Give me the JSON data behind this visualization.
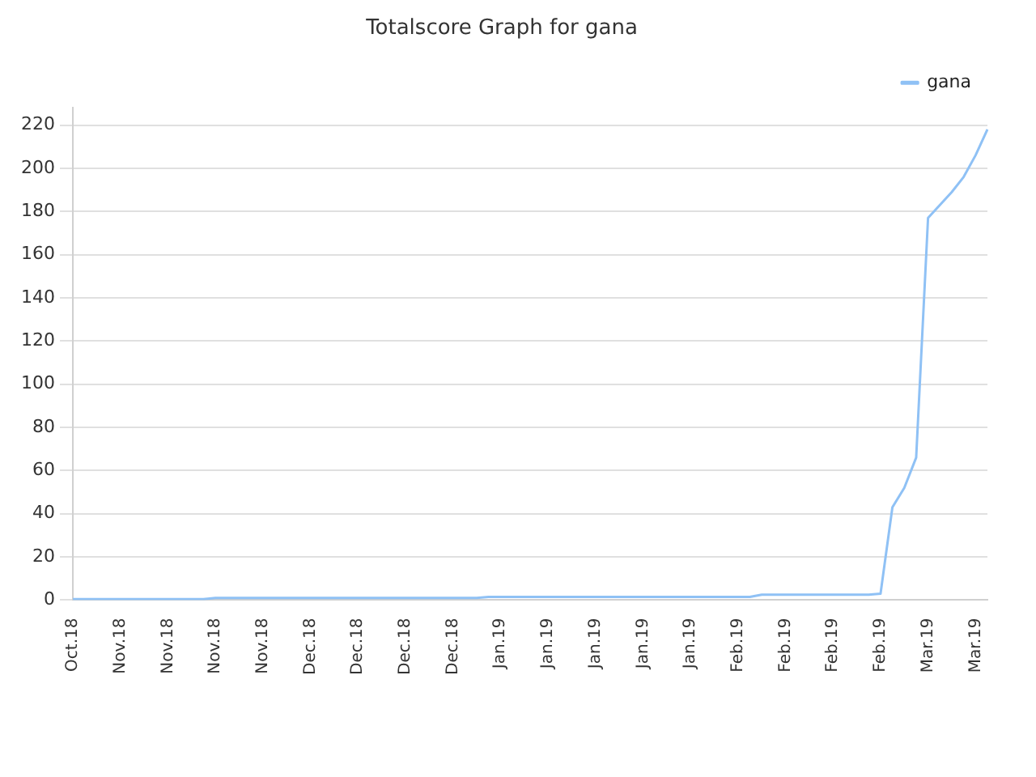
{
  "chart_data": {
    "type": "line",
    "title": "Totalscore Graph for gana",
    "categories": [
      "Oct.18",
      null,
      null,
      null,
      "Nov.18",
      null,
      null,
      null,
      "Nov.18",
      null,
      null,
      null,
      "Nov.18",
      null,
      null,
      null,
      "Nov.18",
      null,
      null,
      null,
      "Dec.18",
      null,
      null,
      null,
      "Dec.18",
      null,
      null,
      null,
      "Dec.18",
      null,
      null,
      null,
      "Dec.18",
      null,
      null,
      null,
      "Jan.19",
      null,
      null,
      null,
      "Jan.19",
      null,
      null,
      null,
      "Jan.19",
      null,
      null,
      null,
      "Jan.19",
      null,
      null,
      null,
      "Jan.19",
      null,
      null,
      null,
      "Feb.19",
      null,
      null,
      null,
      "Feb.19",
      null,
      null,
      null,
      "Feb.19",
      null,
      null,
      null,
      "Feb.19",
      null,
      null,
      null,
      "Mar.19",
      null,
      null,
      null,
      "Mar.19",
      null
    ],
    "ylim": [
      0,
      228
    ],
    "yticks": [
      0,
      20,
      40,
      60,
      80,
      100,
      120,
      140,
      160,
      180,
      200,
      220
    ],
    "grid": "y",
    "legend": "top right",
    "marker": "none",
    "line_style": "solid",
    "series": [
      {
        "name": "gana",
        "color": "#8fc1f5",
        "values": [
          0.5,
          0.5,
          0.5,
          0.5,
          0.5,
          0.5,
          0.5,
          0.5,
          0.5,
          0.5,
          0.5,
          0.5,
          1,
          1,
          1,
          1,
          1,
          1,
          1,
          1,
          1,
          1,
          1,
          1,
          1,
          1,
          1,
          1,
          1,
          1,
          1,
          1,
          1,
          1,
          1,
          1.5,
          1.5,
          1.5,
          1.5,
          1.5,
          1.5,
          1.5,
          1.5,
          1.5,
          1.5,
          1.5,
          1.5,
          1.5,
          1.5,
          1.5,
          1.5,
          1.5,
          1.5,
          1.5,
          1.5,
          1.5,
          1.5,
          1.5,
          2.5,
          2.5,
          2.5,
          2.5,
          2.5,
          2.5,
          2.5,
          2.5,
          2.5,
          2.5,
          3,
          43,
          52,
          66,
          177,
          183,
          189,
          196,
          206,
          218
        ]
      }
    ]
  }
}
